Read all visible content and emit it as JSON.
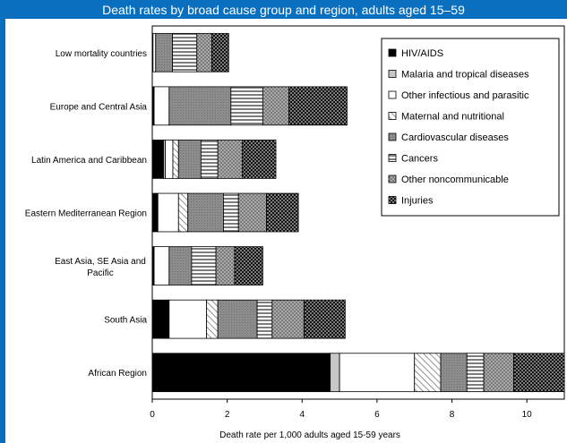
{
  "chart_data": {
    "type": "bar",
    "orientation": "horizontal",
    "stacked": true,
    "title": "Death rates by broad cause group and region, adults aged 15–59",
    "xlabel": "Death rate per 1,000 adults aged 15-59 years",
    "ylabel": "",
    "xlim": [
      0,
      11
    ],
    "xticks": [
      "0",
      "2",
      "4",
      "6",
      "8",
      "10",
      "1"
    ],
    "grid": false,
    "legend_position": "top-right",
    "categories": [
      "Low mortality countries",
      "Europe and Central Asia",
      "Latin America and Caribbean",
      "Eastern Mediterranean Region",
      "East Asia, SE Asia and Pacific",
      "South Asia",
      "African Region"
    ],
    "series": [
      {
        "name": "HIV/AIDS",
        "pattern": "solid-black",
        "values": [
          0.02,
          0.05,
          0.3,
          0.15,
          0.05,
          0.45,
          4.75
        ]
      },
      {
        "name": "Malaria and tropical diseases",
        "pattern": "light-gray",
        "values": [
          0.0,
          0.0,
          0.05,
          0.0,
          0.0,
          0.0,
          0.25
        ]
      },
      {
        "name": "Other infectious and parasitic",
        "pattern": "white",
        "values": [
          0.07,
          0.4,
          0.2,
          0.55,
          0.4,
          1.0,
          2.0
        ]
      },
      {
        "name": "Maternal and nutritional",
        "pattern": "diagonal",
        "values": [
          0.0,
          0.0,
          0.15,
          0.25,
          0.0,
          0.3,
          0.7
        ]
      },
      {
        "name": "Cardiovascular diseases",
        "pattern": "dark-gray",
        "values": [
          0.45,
          1.65,
          0.6,
          0.95,
          0.6,
          1.05,
          0.7
        ]
      },
      {
        "name": "Cancers",
        "pattern": "horizontal-lines",
        "values": [
          0.65,
          0.85,
          0.45,
          0.4,
          0.65,
          0.4,
          0.45
        ]
      },
      {
        "name": "Other noncommunicable",
        "pattern": "dotted",
        "values": [
          0.4,
          0.7,
          0.65,
          0.75,
          0.5,
          0.85,
          0.8
        ]
      },
      {
        "name": "Injuries",
        "pattern": "black-dots",
        "values": [
          0.45,
          1.55,
          0.9,
          0.85,
          0.75,
          1.1,
          1.35
        ]
      }
    ]
  }
}
